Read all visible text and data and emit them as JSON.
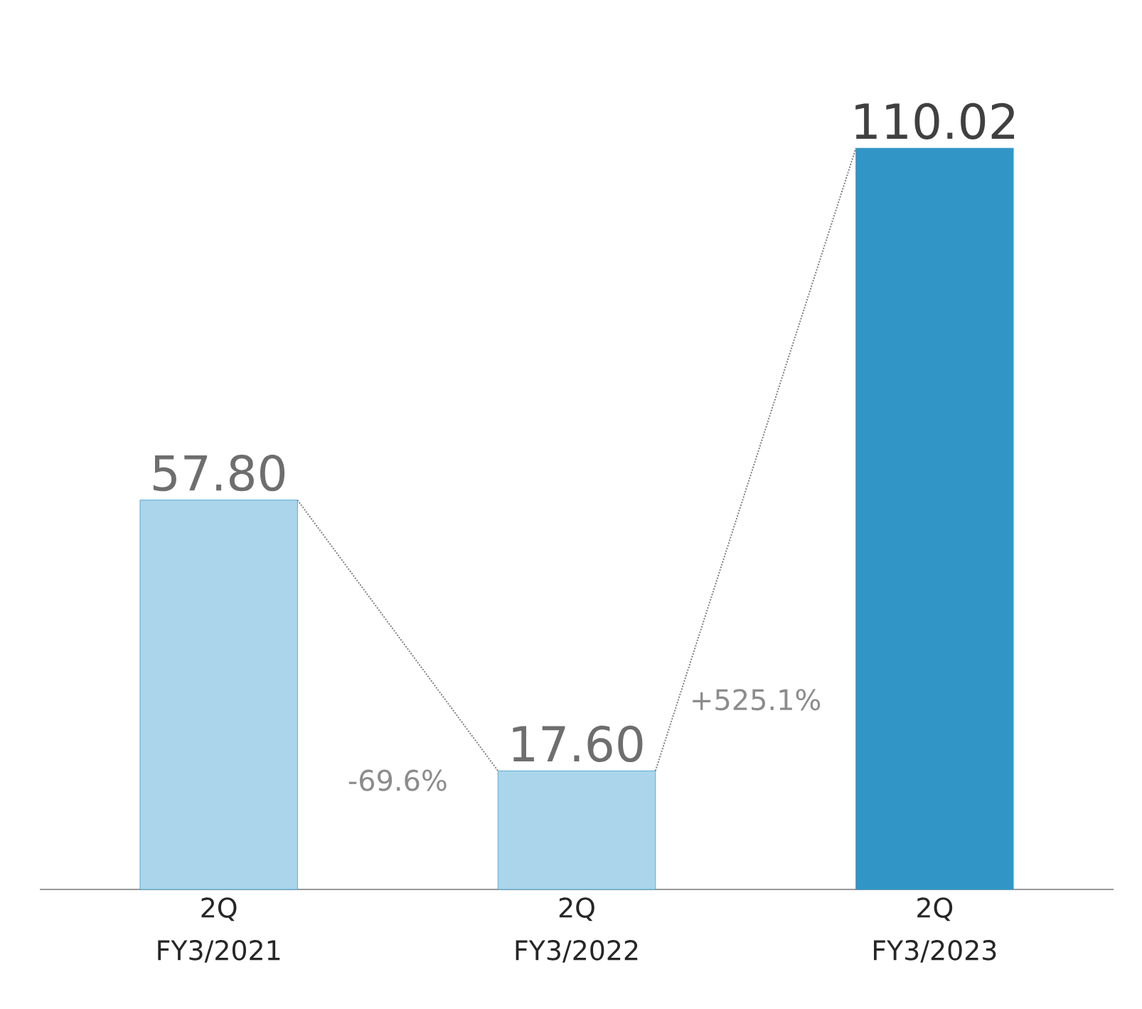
{
  "chart_data": {
    "type": "bar",
    "categories": [
      "2Q FY3/2021",
      "2Q FY3/2022",
      "2Q FY3/2023"
    ],
    "values": [
      57.8,
      17.6,
      110.02
    ],
    "colors": [
      "#abd5ea",
      "#abd5ea",
      "#3196c6"
    ],
    "value_labels": [
      "57.80",
      "17.60",
      "110.02"
    ],
    "annotations": [
      "-69.6%",
      "+525.1%"
    ],
    "grid": false
  }
}
